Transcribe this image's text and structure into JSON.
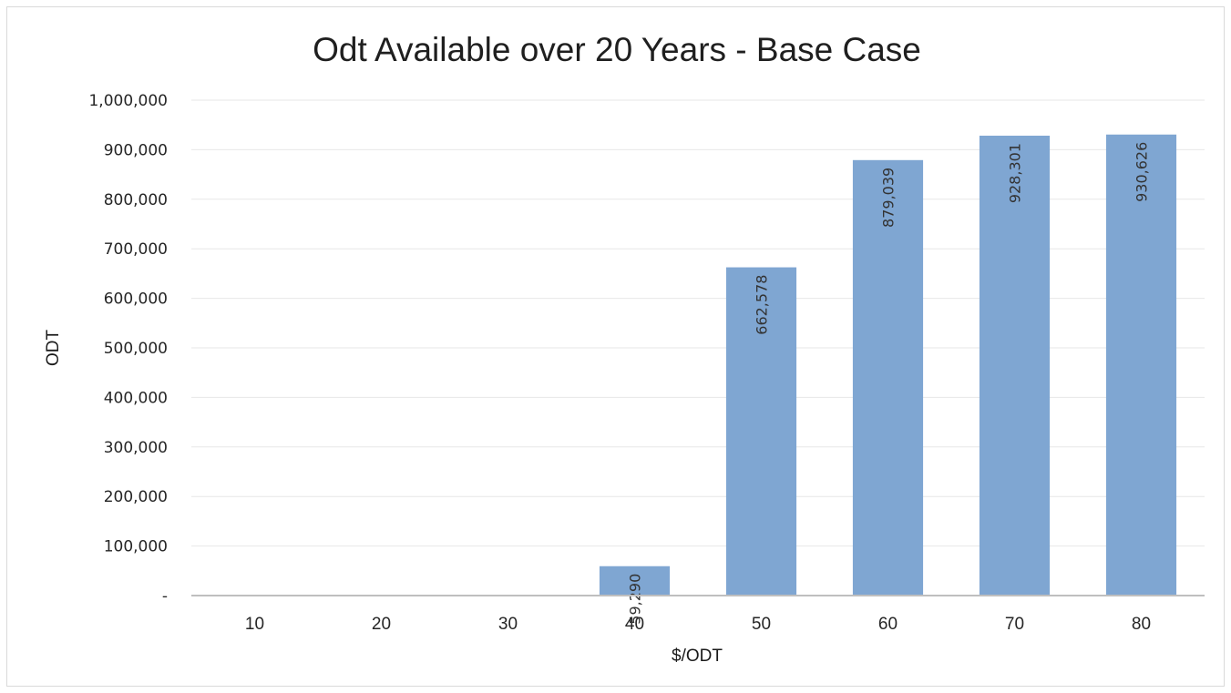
{
  "chart_data": {
    "type": "bar",
    "title": "Odt Available over 20 Years - Base Case",
    "xlabel": "$/ODT",
    "ylabel": "ODT",
    "categories": [
      "10",
      "20",
      "30",
      "40",
      "50",
      "60",
      "70",
      "80"
    ],
    "values": [
      0,
      0,
      0,
      59290,
      662578,
      879039,
      928301,
      930626
    ],
    "data_labels": [
      "",
      "",
      "",
      "59,290",
      "662,578",
      "879,039",
      "928,301",
      "930,626"
    ],
    "ylim": [
      0,
      1000000
    ],
    "yticks": [
      0,
      100000,
      200000,
      300000,
      400000,
      500000,
      600000,
      700000,
      800000,
      900000,
      1000000
    ],
    "ytick_labels": [
      "-",
      "100,000",
      "200,000",
      "300,000",
      "400,000",
      "500,000",
      "600,000",
      "700,000",
      "800,000",
      "900,000",
      "1,000,000"
    ],
    "grid": true,
    "legend": "none",
    "bar_color": "#7fa6d2"
  }
}
